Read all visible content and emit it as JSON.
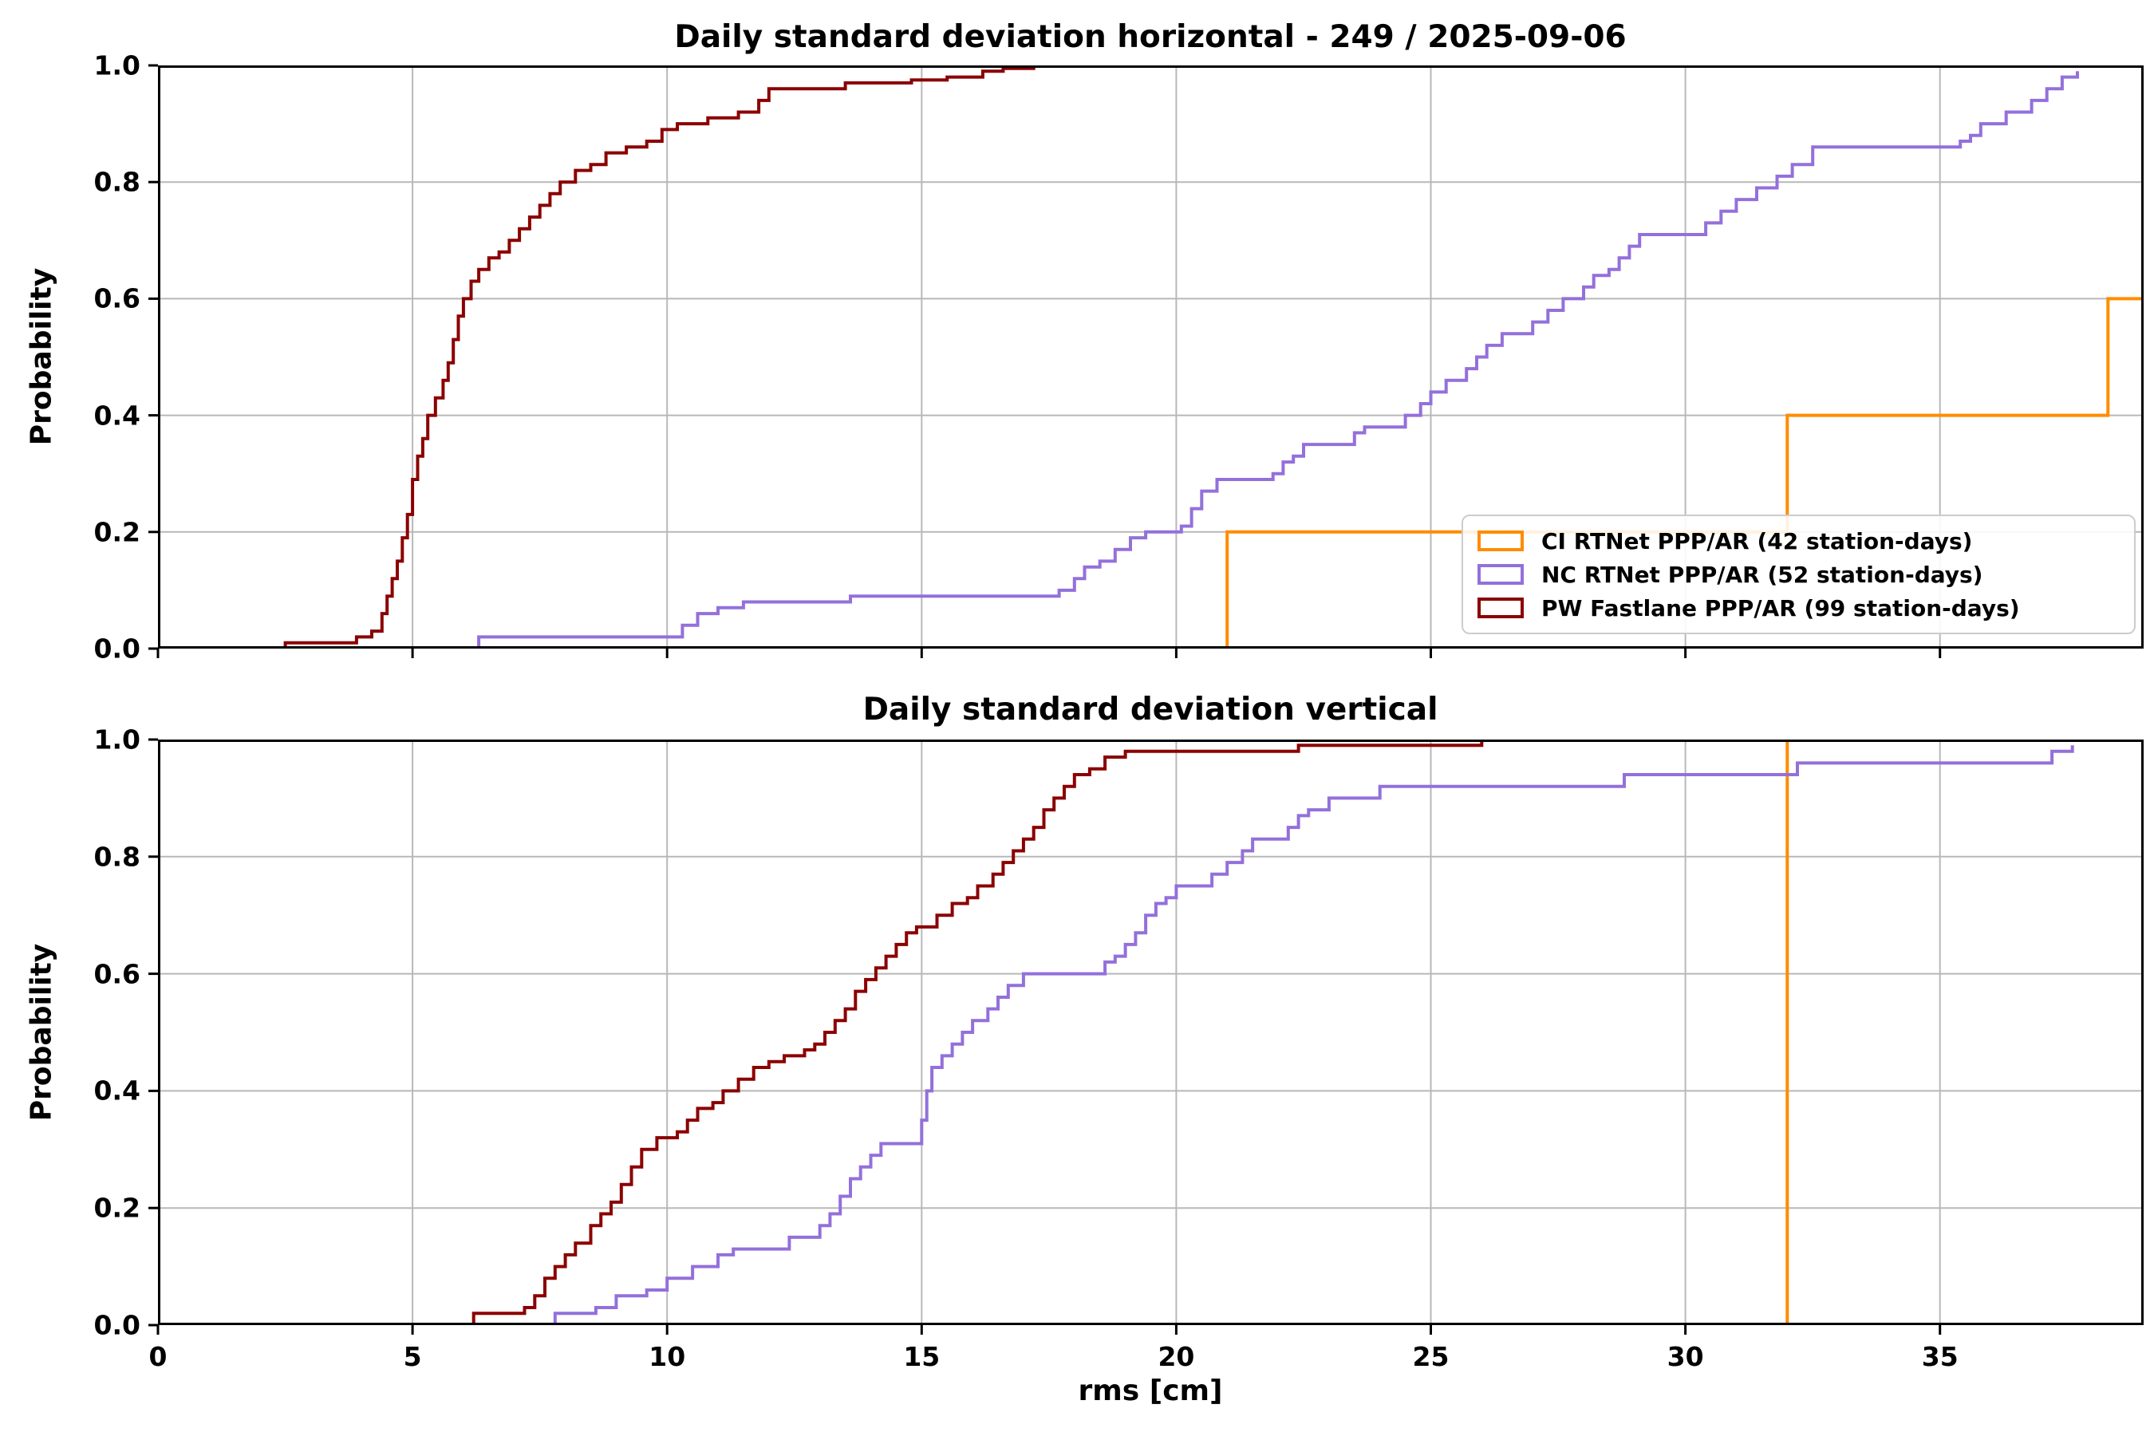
{
  "figure": {
    "background": "#ffffff"
  },
  "legend": {
    "items": [
      {
        "label": "CI RTNet PPP/AR (42 station-days)",
        "color": "#ff8c00"
      },
      {
        "label": "NC RTNet PPP/AR (52 station-days)",
        "color": "#9370db"
      },
      {
        "label": "PW Fastlane PPP/AR (99 station-days)",
        "color": "#8b0000"
      }
    ]
  },
  "chart_data": [
    {
      "type": "line",
      "subtype": "empirical-cdf-step",
      "title": "Daily standard deviation horizontal - 249  / 2025-09-06",
      "xlabel": "",
      "ylabel": "Probability",
      "xlim": [
        0,
        39
      ],
      "ylim": [
        0,
        1.0
      ],
      "xticks": [
        0,
        5,
        10,
        15,
        20,
        25,
        30,
        35
      ],
      "yticks": [
        "0.0",
        "0.2",
        "0.4",
        "0.6",
        "0.8",
        "1.0"
      ],
      "grid": true,
      "grid_color": "#b8b8b8",
      "legend_position": "lower right",
      "series": [
        {
          "name": "CI RTNet PPP/AR (42 station-days)",
          "color": "#ff8c00",
          "extend_to_xmax": true,
          "points": [
            [
              21.0,
              0.2
            ],
            [
              32.0,
              0.4
            ],
            [
              38.3,
              0.6
            ]
          ]
        },
        {
          "name": "NC RTNet PPP/AR (52 station-days)",
          "color": "#9370db",
          "extend_to_xmax": false,
          "points": [
            [
              6.3,
              0.02
            ],
            [
              10.3,
              0.04
            ],
            [
              10.6,
              0.06
            ],
            [
              11.0,
              0.07
            ],
            [
              11.5,
              0.08
            ],
            [
              13.6,
              0.09
            ],
            [
              17.7,
              0.1
            ],
            [
              18.0,
              0.12
            ],
            [
              18.2,
              0.14
            ],
            [
              18.5,
              0.15
            ],
            [
              18.8,
              0.17
            ],
            [
              19.1,
              0.19
            ],
            [
              19.4,
              0.2
            ],
            [
              20.1,
              0.21
            ],
            [
              20.3,
              0.24
            ],
            [
              20.5,
              0.27
            ],
            [
              20.8,
              0.29
            ],
            [
              21.9,
              0.3
            ],
            [
              22.1,
              0.32
            ],
            [
              22.3,
              0.33
            ],
            [
              22.5,
              0.35
            ],
            [
              23.5,
              0.37
            ],
            [
              23.7,
              0.38
            ],
            [
              24.5,
              0.4
            ],
            [
              24.8,
              0.42
            ],
            [
              25.0,
              0.44
            ],
            [
              25.3,
              0.46
            ],
            [
              25.7,
              0.48
            ],
            [
              25.9,
              0.5
            ],
            [
              26.1,
              0.52
            ],
            [
              26.4,
              0.54
            ],
            [
              27.0,
              0.56
            ],
            [
              27.3,
              0.58
            ],
            [
              27.6,
              0.6
            ],
            [
              28.0,
              0.62
            ],
            [
              28.2,
              0.64
            ],
            [
              28.5,
              0.65
            ],
            [
              28.7,
              0.67
            ],
            [
              28.9,
              0.69
            ],
            [
              29.1,
              0.71
            ],
            [
              30.4,
              0.73
            ],
            [
              30.7,
              0.75
            ],
            [
              31.0,
              0.77
            ],
            [
              31.4,
              0.79
            ],
            [
              31.8,
              0.81
            ],
            [
              32.1,
              0.83
            ],
            [
              32.5,
              0.86
            ],
            [
              35.4,
              0.87
            ],
            [
              35.6,
              0.88
            ],
            [
              35.8,
              0.9
            ],
            [
              36.3,
              0.92
            ],
            [
              36.8,
              0.94
            ],
            [
              37.1,
              0.96
            ],
            [
              37.4,
              0.98
            ],
            [
              37.7,
              0.99
            ]
          ]
        },
        {
          "name": "PW Fastlane PPP/AR (99 station-days)",
          "color": "#8b0000",
          "extend_to_xmax": false,
          "points": [
            [
              2.5,
              0.01
            ],
            [
              3.9,
              0.02
            ],
            [
              4.2,
              0.03
            ],
            [
              4.4,
              0.06
            ],
            [
              4.5,
              0.09
            ],
            [
              4.6,
              0.12
            ],
            [
              4.7,
              0.15
            ],
            [
              4.8,
              0.19
            ],
            [
              4.9,
              0.23
            ],
            [
              5.0,
              0.29
            ],
            [
              5.1,
              0.33
            ],
            [
              5.2,
              0.36
            ],
            [
              5.3,
              0.4
            ],
            [
              5.45,
              0.43
            ],
            [
              5.6,
              0.46
            ],
            [
              5.7,
              0.49
            ],
            [
              5.8,
              0.53
            ],
            [
              5.9,
              0.57
            ],
            [
              6.0,
              0.6
            ],
            [
              6.15,
              0.63
            ],
            [
              6.3,
              0.65
            ],
            [
              6.5,
              0.67
            ],
            [
              6.7,
              0.68
            ],
            [
              6.9,
              0.7
            ],
            [
              7.1,
              0.72
            ],
            [
              7.3,
              0.74
            ],
            [
              7.5,
              0.76
            ],
            [
              7.7,
              0.78
            ],
            [
              7.9,
              0.8
            ],
            [
              8.2,
              0.82
            ],
            [
              8.5,
              0.83
            ],
            [
              8.8,
              0.85
            ],
            [
              9.2,
              0.86
            ],
            [
              9.6,
              0.87
            ],
            [
              9.9,
              0.89
            ],
            [
              10.2,
              0.9
            ],
            [
              10.8,
              0.91
            ],
            [
              11.4,
              0.92
            ],
            [
              11.8,
              0.94
            ],
            [
              12.0,
              0.96
            ],
            [
              13.5,
              0.97
            ],
            [
              14.8,
              0.975
            ],
            [
              15.5,
              0.98
            ],
            [
              16.2,
              0.99
            ],
            [
              16.6,
              0.995
            ],
            [
              17.2,
              1.0
            ]
          ]
        }
      ]
    },
    {
      "type": "line",
      "subtype": "empirical-cdf-step",
      "title": "Daily standard deviation vertical",
      "xlabel": "rms [cm]",
      "ylabel": "Probability",
      "xlim": [
        0,
        39
      ],
      "ylim": [
        0,
        1.0
      ],
      "xticks": [
        0,
        5,
        10,
        15,
        20,
        25,
        30,
        35
      ],
      "yticks": [
        "0.0",
        "0.2",
        "0.4",
        "0.6",
        "0.8",
        "1.0"
      ],
      "grid": true,
      "grid_color": "#b8b8b8",
      "legend_position": "none",
      "series": [
        {
          "name": "CI RTNet PPP/AR (42 station-days)",
          "color": "#ff8c00",
          "extend_to_xmax": false,
          "points": [
            [
              32.0,
              1.0
            ]
          ]
        },
        {
          "name": "NC RTNet PPP/AR (52 station-days)",
          "color": "#9370db",
          "extend_to_xmax": false,
          "points": [
            [
              7.8,
              0.02
            ],
            [
              8.6,
              0.03
            ],
            [
              9.0,
              0.05
            ],
            [
              9.6,
              0.06
            ],
            [
              10.0,
              0.08
            ],
            [
              10.5,
              0.1
            ],
            [
              11.0,
              0.12
            ],
            [
              11.3,
              0.13
            ],
            [
              12.4,
              0.15
            ],
            [
              13.0,
              0.17
            ],
            [
              13.2,
              0.19
            ],
            [
              13.4,
              0.22
            ],
            [
              13.6,
              0.25
            ],
            [
              13.8,
              0.27
            ],
            [
              14.0,
              0.29
            ],
            [
              14.2,
              0.31
            ],
            [
              15.0,
              0.35
            ],
            [
              15.1,
              0.4
            ],
            [
              15.2,
              0.44
            ],
            [
              15.4,
              0.46
            ],
            [
              15.6,
              0.48
            ],
            [
              15.8,
              0.5
            ],
            [
              16.0,
              0.52
            ],
            [
              16.3,
              0.54
            ],
            [
              16.5,
              0.56
            ],
            [
              16.7,
              0.58
            ],
            [
              17.0,
              0.6
            ],
            [
              18.6,
              0.62
            ],
            [
              18.8,
              0.63
            ],
            [
              19.0,
              0.65
            ],
            [
              19.2,
              0.67
            ],
            [
              19.4,
              0.7
            ],
            [
              19.6,
              0.72
            ],
            [
              19.8,
              0.73
            ],
            [
              20.0,
              0.75
            ],
            [
              20.7,
              0.77
            ],
            [
              21.0,
              0.79
            ],
            [
              21.3,
              0.81
            ],
            [
              21.5,
              0.83
            ],
            [
              22.2,
              0.85
            ],
            [
              22.4,
              0.87
            ],
            [
              22.6,
              0.88
            ],
            [
              23.0,
              0.9
            ],
            [
              24.0,
              0.92
            ],
            [
              28.8,
              0.94
            ],
            [
              32.2,
              0.96
            ],
            [
              37.2,
              0.98
            ],
            [
              37.6,
              0.99
            ]
          ]
        },
        {
          "name": "PW Fastlane PPP/AR (99 station-days)",
          "color": "#8b0000",
          "extend_to_xmax": false,
          "points": [
            [
              6.2,
              0.02
            ],
            [
              7.2,
              0.03
            ],
            [
              7.4,
              0.05
            ],
            [
              7.6,
              0.08
            ],
            [
              7.8,
              0.1
            ],
            [
              8.0,
              0.12
            ],
            [
              8.2,
              0.14
            ],
            [
              8.5,
              0.17
            ],
            [
              8.7,
              0.19
            ],
            [
              8.9,
              0.21
            ],
            [
              9.1,
              0.24
            ],
            [
              9.3,
              0.27
            ],
            [
              9.5,
              0.3
            ],
            [
              9.8,
              0.32
            ],
            [
              10.2,
              0.33
            ],
            [
              10.4,
              0.35
            ],
            [
              10.6,
              0.37
            ],
            [
              10.9,
              0.38
            ],
            [
              11.1,
              0.4
            ],
            [
              11.4,
              0.42
            ],
            [
              11.7,
              0.44
            ],
            [
              12.0,
              0.45
            ],
            [
              12.3,
              0.46
            ],
            [
              12.7,
              0.47
            ],
            [
              12.9,
              0.48
            ],
            [
              13.1,
              0.5
            ],
            [
              13.3,
              0.52
            ],
            [
              13.5,
              0.54
            ],
            [
              13.7,
              0.57
            ],
            [
              13.9,
              0.59
            ],
            [
              14.1,
              0.61
            ],
            [
              14.3,
              0.63
            ],
            [
              14.5,
              0.65
            ],
            [
              14.7,
              0.67
            ],
            [
              14.9,
              0.68
            ],
            [
              15.3,
              0.7
            ],
            [
              15.6,
              0.72
            ],
            [
              15.9,
              0.73
            ],
            [
              16.1,
              0.75
            ],
            [
              16.4,
              0.77
            ],
            [
              16.6,
              0.79
            ],
            [
              16.8,
              0.81
            ],
            [
              17.0,
              0.83
            ],
            [
              17.2,
              0.85
            ],
            [
              17.4,
              0.88
            ],
            [
              17.6,
              0.9
            ],
            [
              17.8,
              0.92
            ],
            [
              18.0,
              0.94
            ],
            [
              18.3,
              0.95
            ],
            [
              18.6,
              0.97
            ],
            [
              19.0,
              0.98
            ],
            [
              22.4,
              0.99
            ],
            [
              26.0,
              1.0
            ]
          ]
        }
      ]
    }
  ]
}
